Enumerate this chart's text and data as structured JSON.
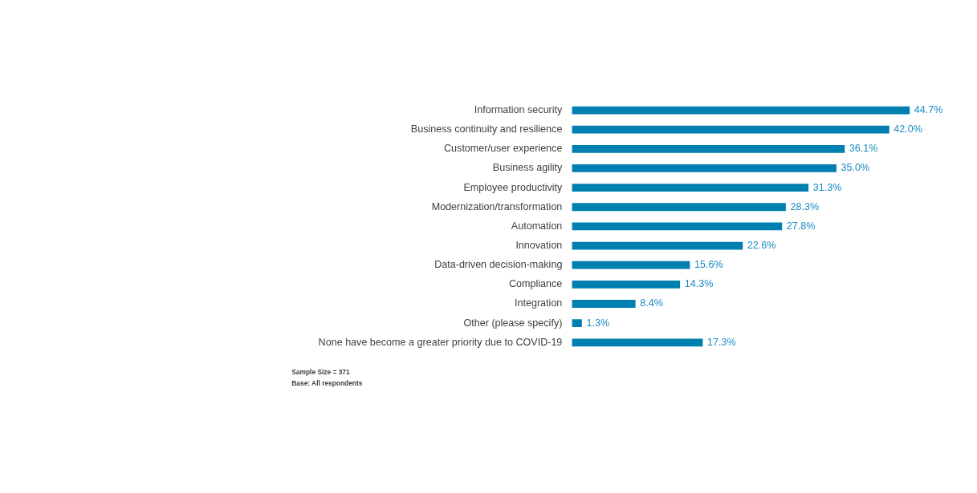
{
  "chart_data": {
    "type": "bar",
    "orientation": "horizontal",
    "categories": [
      "Information security",
      "Business continuity and resilience",
      "Customer/user experience",
      "Business agility",
      "Employee productivity",
      "Modernization/transformation",
      "Automation",
      "Innovation",
      "Data-driven decision-making",
      "Compliance",
      "Integration",
      "Other (please specify)",
      "None have become a greater priority due to COVID-19"
    ],
    "values": [
      44.7,
      42.0,
      36.1,
      35.0,
      31.3,
      28.3,
      27.8,
      22.6,
      15.6,
      14.3,
      8.4,
      1.3,
      17.3
    ],
    "value_labels": [
      "44.7%",
      "42.0%",
      "36.1%",
      "35.0%",
      "31.3%",
      "28.3%",
      "27.8%",
      "22.6%",
      "15.6%",
      "14.3%",
      "8.4%",
      "1.3%",
      "17.3%"
    ],
    "color": "#0080b0",
    "annotations": [
      "Sample Size = 371",
      "Base: All respondents"
    ]
  }
}
